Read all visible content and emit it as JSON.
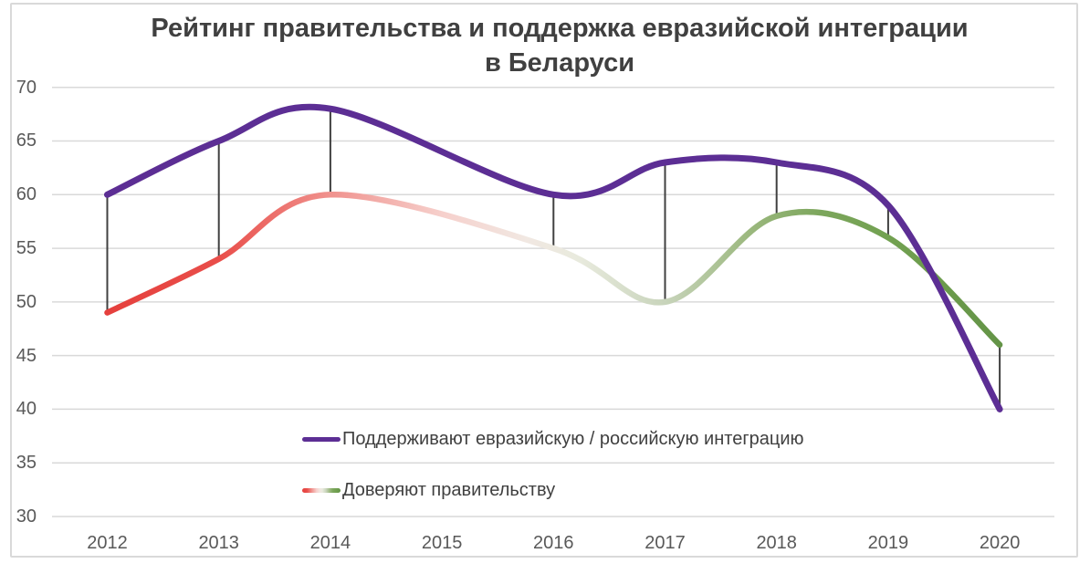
{
  "title": {
    "line1": "Рейтинг правительства и поддержка евразийской интеграции",
    "line2": "в Беларуси"
  },
  "chart_data": {
    "type": "line",
    "smooth": true,
    "grid": true,
    "high_low_lines": true,
    "legend_position": "inside-bottom-left",
    "x_labels": [
      "2012",
      "2013",
      "2014",
      "2015",
      "2016",
      "2017",
      "2018",
      "2019",
      "2020"
    ],
    "y_ticks": [
      70,
      65,
      60,
      55,
      50,
      45,
      40,
      35,
      30
    ],
    "ylim": [
      30,
      70
    ],
    "series": [
      {
        "name": "Поддерживают евразийскую / российскую интеграцию",
        "color": "#5C2E94",
        "values": [
          60,
          65,
          68,
          null,
          60,
          63,
          63,
          59,
          40
        ]
      },
      {
        "name": "Доверяют правительству",
        "values": [
          49,
          54,
          60,
          null,
          55,
          50,
          58,
          56,
          46
        ],
        "gradient": [
          {
            "offset": 0.0,
            "color": "#E5403D"
          },
          {
            "offset": 0.125,
            "color": "#E94E4A"
          },
          {
            "offset": 0.25,
            "color": "#F0928E"
          },
          {
            "offset": 0.375,
            "color": "#F6D0CC"
          },
          {
            "offset": 0.47,
            "color": "#F1E8E2"
          },
          {
            "offset": 0.53,
            "color": "#E8EADD"
          },
          {
            "offset": 0.625,
            "color": "#C8D4BB"
          },
          {
            "offset": 0.72,
            "color": "#9BB87E"
          },
          {
            "offset": 0.8,
            "color": "#7CA65C"
          },
          {
            "offset": 0.875,
            "color": "#72A151"
          },
          {
            "offset": 1.0,
            "color": "#649447"
          }
        ]
      }
    ]
  },
  "colors": {
    "background": "#FFFFFF",
    "frame_border": "#D9D9D9",
    "gridline": "#D9D9D9",
    "high_low_line": "#404040",
    "title_text": "#404040",
    "tick_text": "#595959",
    "legend_text": "#404040"
  }
}
